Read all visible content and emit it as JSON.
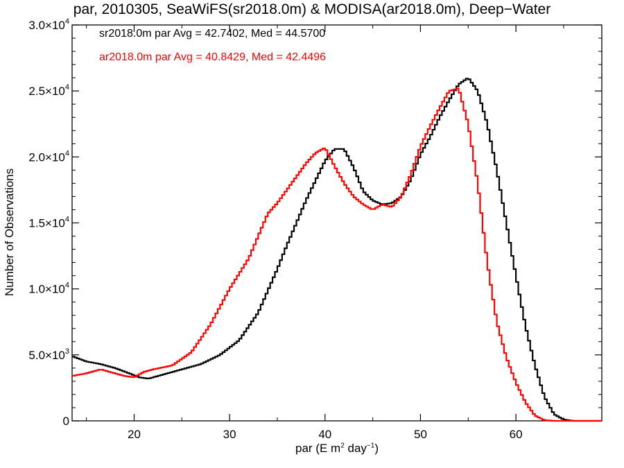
{
  "chart_data": {
    "type": "line",
    "title": "par, 2010305, SeaWiFS(sr2018.0m) & MODISA(ar2018.0m), Deep−Water",
    "xlabel": {
      "prefix": "par (E m",
      "sup1": "2",
      "mid": " day",
      "sup2": "−1",
      "suffix": ")"
    },
    "ylabel": "Number of Observations",
    "xlim": [
      13.5,
      69
    ],
    "ylim": [
      0,
      30000
    ],
    "x_ticks": [
      20,
      30,
      40,
      50,
      60
    ],
    "y_ticks": [
      {
        "value": 0,
        "mantissa": "0",
        "exp": ""
      },
      {
        "value": 5000,
        "mantissa": "5.0×10",
        "exp": "3"
      },
      {
        "value": 10000,
        "mantissa": "1.0×10",
        "exp": "4"
      },
      {
        "value": 15000,
        "mantissa": "1.5×10",
        "exp": "4"
      },
      {
        "value": 20000,
        "mantissa": "2.0×10",
        "exp": "4"
      },
      {
        "value": 25000,
        "mantissa": "2.5×10",
        "exp": "4"
      },
      {
        "value": 30000,
        "mantissa": "3.0×10",
        "exp": "4"
      }
    ],
    "stats": [
      {
        "text": "sr2018.0m par Avg = 42.7402, Med = 44.5700",
        "color": "#000000"
      },
      {
        "text": "ar2018.0m par Avg = 40.8429, Med = 42.4496",
        "color": "#ff0000"
      }
    ],
    "series": [
      {
        "color": "#000000",
        "x": [
          13.5,
          15,
          16.5,
          18,
          19.5,
          20.5,
          21.5,
          23,
          25,
          27,
          29,
          31,
          33,
          35,
          36,
          37,
          38,
          39,
          40,
          41,
          42,
          43,
          44,
          45,
          46,
          47,
          48,
          49,
          50,
          51,
          52,
          53,
          54,
          55,
          56,
          57,
          58,
          59,
          60,
          61,
          62,
          63,
          64,
          65,
          66,
          69
        ],
        "y": [
          4900,
          4500,
          4300,
          4000,
          3600,
          3300,
          3200,
          3500,
          3900,
          4300,
          5000,
          6100,
          8200,
          11500,
          13300,
          15000,
          16700,
          18200,
          19700,
          20600,
          20600,
          19200,
          17400,
          16700,
          16400,
          16500,
          17000,
          18300,
          20200,
          21500,
          23000,
          24300,
          25500,
          26000,
          25000,
          22500,
          19000,
          15000,
          11000,
          7200,
          4200,
          1800,
          500,
          100,
          0,
          0
        ]
      },
      {
        "color": "#ff0000",
        "x": [
          13.5,
          15,
          16.5,
          17.5,
          19,
          20,
          21,
          22,
          24,
          26,
          28,
          30,
          32,
          34,
          35,
          36,
          37,
          38,
          39,
          40,
          41,
          42,
          43,
          44,
          45,
          46,
          47,
          48,
          49,
          50,
          51,
          52,
          53,
          54,
          55,
          56,
          57,
          58,
          59,
          60,
          61,
          62,
          63,
          64,
          69
        ],
        "y": [
          3400,
          3600,
          3900,
          3700,
          3400,
          3300,
          3700,
          3900,
          4200,
          5200,
          7300,
          10000,
          12300,
          15700,
          16500,
          17500,
          18500,
          19500,
          20300,
          20700,
          19300,
          18000,
          17000,
          16400,
          16000,
          16400,
          16200,
          17000,
          18700,
          20800,
          22300,
          23700,
          25000,
          25200,
          22500,
          18000,
          12000,
          7500,
          4800,
          2900,
          1400,
          400,
          50,
          0,
          0
        ]
      }
    ]
  }
}
